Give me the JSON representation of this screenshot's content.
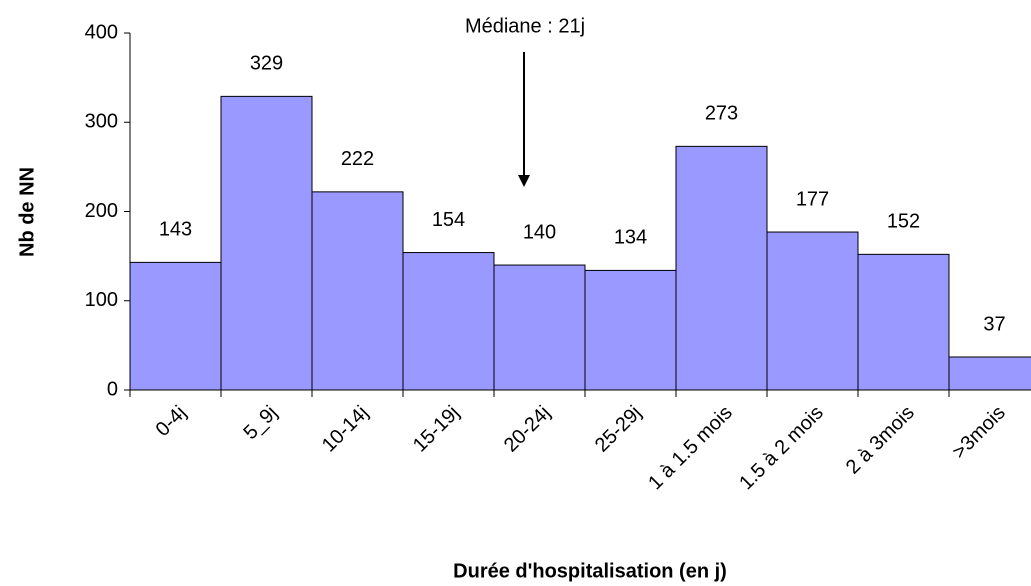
{
  "chart_data": {
    "type": "bar",
    "annotation": "Médiane : 21j",
    "xlabel": "Durée d'hospitalisation (en j)",
    "ylabel": "Nb de NN",
    "categories": [
      "0-4j",
      "5_9j",
      "10-14j",
      "15-19j",
      "20-24j",
      "25-29j",
      "1 à 1.5 mois",
      "1.5 à 2 mois",
      "2 à 3mois",
      ">3mois"
    ],
    "values": [
      143,
      329,
      222,
      154,
      140,
      134,
      273,
      177,
      152,
      37
    ],
    "color": "#9999ff",
    "ylim": [
      0,
      400
    ],
    "yticks": [
      0,
      100,
      200,
      300,
      400
    ],
    "grid": false
  }
}
